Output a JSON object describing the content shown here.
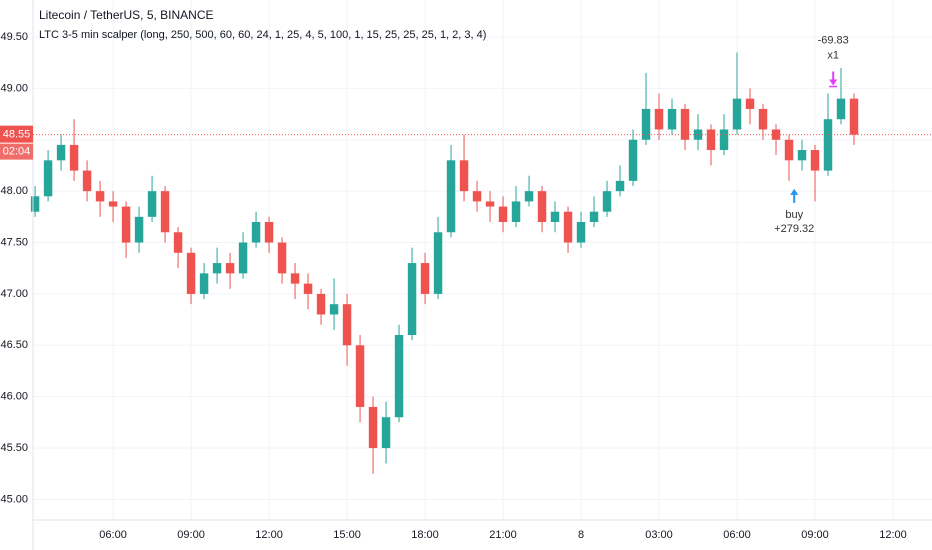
{
  "chart_data": {
    "type": "candlestick",
    "title": "Litecoin / TetherUS, 5, BINANCE",
    "subtitle": "LTC 3-5 min scalper (long, 250, 500, 60, 60, 24, 1, 25, 4, 5, 100, 1, 15, 25, 25, 25, 1, 2, 3, 4)",
    "up_color": "#26a69a",
    "down_color": "#ef5350",
    "grid": true,
    "xlim": [
      2.92,
      37.5
    ],
    "ylim": [
      44.8,
      49.86
    ],
    "yticks": [
      {
        "value": 45,
        "label": "45.00"
      },
      {
        "value": 45.5,
        "label": "45.50"
      },
      {
        "value": 46,
        "label": "46.00"
      },
      {
        "value": 46.5,
        "label": "46.50"
      },
      {
        "value": 47,
        "label": "47.00"
      },
      {
        "value": 47.5,
        "label": "47.50"
      },
      {
        "value": 48,
        "label": "48.00"
      },
      {
        "value": 48.5,
        "label": "48.50"
      },
      {
        "value": 49,
        "label": "49.00"
      },
      {
        "value": 49.5,
        "label": "49.50"
      }
    ],
    "xticks": [
      {
        "value": 6,
        "label": "06:00"
      },
      {
        "value": 9,
        "label": "09:00"
      },
      {
        "value": 12,
        "label": "12:00"
      },
      {
        "value": 15,
        "label": "15:00"
      },
      {
        "value": 18,
        "label": "18:00"
      },
      {
        "value": 21,
        "label": "21:00"
      },
      {
        "value": 24,
        "label": "8"
      },
      {
        "value": 27,
        "label": "03:00"
      },
      {
        "value": 30,
        "label": "06:00"
      },
      {
        "value": 33,
        "label": "09:00"
      },
      {
        "value": 36,
        "label": "12:00"
      }
    ],
    "x": [
      3,
      3.5,
      4,
      4.5,
      5,
      5.5,
      6,
      6.5,
      7,
      7.5,
      8,
      8.5,
      9,
      9.5,
      10,
      10.5,
      11,
      11.5,
      12,
      12.5,
      13,
      13.5,
      14,
      14.5,
      15,
      15.5,
      16,
      16.5,
      17,
      17.5,
      18,
      18.5,
      19,
      19.5,
      20,
      20.5,
      21,
      21.5,
      22,
      22.5,
      23,
      23.5,
      24,
      24.5,
      25,
      25.5,
      26,
      26.5,
      27,
      27.5,
      28,
      28.5,
      29,
      29.5,
      30,
      30.5,
      31,
      31.5,
      32,
      32.5,
      33,
      33.5,
      34,
      34.5
    ],
    "open": [
      47.8,
      47.95,
      48.3,
      48.45,
      48.2,
      48,
      47.9,
      47.85,
      47.5,
      47.75,
      48,
      47.6,
      47.4,
      47,
      47.2,
      47.3,
      47.2,
      47.5,
      47.7,
      47.5,
      47.2,
      47.1,
      47,
      46.8,
      46.9,
      46.5,
      45.9,
      45.5,
      45.8,
      46.6,
      47.3,
      47,
      47.6,
      48.3,
      48,
      47.9,
      47.85,
      47.7,
      47.9,
      48,
      47.7,
      47.8,
      47.5,
      47.7,
      47.8,
      48,
      48.1,
      48.5,
      48.8,
      48.6,
      48.8,
      48.5,
      48.6,
      48.4,
      48.6,
      48.9,
      48.8,
      48.6,
      48.5,
      48.3,
      48.4,
      48.2,
      48.7,
      48.9
    ],
    "high": [
      48.05,
      48.4,
      48.55,
      48.7,
      48.3,
      48.1,
      48,
      47.9,
      47.85,
      48.15,
      48.05,
      47.65,
      47.45,
      47.3,
      47.45,
      47.4,
      47.6,
      47.8,
      47.75,
      47.55,
      47.3,
      47.2,
      47.05,
      47.15,
      47,
      46.6,
      46,
      45.95,
      46.7,
      47.45,
      47.4,
      47.75,
      48.45,
      48.55,
      48.1,
      48,
      47.95,
      48.05,
      48.15,
      48.05,
      47.9,
      47.85,
      47.8,
      47.95,
      48.1,
      48.25,
      48.6,
      49.15,
      48.95,
      48.9,
      48.85,
      48.75,
      48.65,
      48.75,
      49.35,
      49,
      48.85,
      48.65,
      48.55,
      48.5,
      48.45,
      48.95,
      49.2,
      48.95
    ],
    "low": [
      47.75,
      47.9,
      48.2,
      48.1,
      47.9,
      47.75,
      47.7,
      47.35,
      47.4,
      47.7,
      47.5,
      47.25,
      46.9,
      46.95,
      47.1,
      47.05,
      47.15,
      47.45,
      47.4,
      47.1,
      46.95,
      46.85,
      46.7,
      46.65,
      46.3,
      45.75,
      45.25,
      45.35,
      45.75,
      46.55,
      46.9,
      46.95,
      47.55,
      47.9,
      47.8,
      47.7,
      47.6,
      47.65,
      47.85,
      47.6,
      47.6,
      47.4,
      47.45,
      47.65,
      47.75,
      47.95,
      48.05,
      48.45,
      48.5,
      48.55,
      48.4,
      48.4,
      48.25,
      48.35,
      48.55,
      48.65,
      48.5,
      48.35,
      48.1,
      48.2,
      47.9,
      48.15,
      48.65,
      48.45
    ],
    "close": [
      47.95,
      48.3,
      48.45,
      48.2,
      48,
      47.9,
      47.85,
      47.5,
      47.75,
      48,
      47.6,
      47.4,
      47,
      47.2,
      47.3,
      47.2,
      47.5,
      47.7,
      47.5,
      47.2,
      47.1,
      47,
      46.8,
      46.9,
      46.5,
      45.9,
      45.5,
      45.8,
      46.6,
      47.3,
      47,
      47.6,
      48.3,
      48,
      47.9,
      47.85,
      47.7,
      47.9,
      48,
      47.7,
      47.8,
      47.5,
      47.7,
      47.8,
      48,
      48.1,
      48.5,
      48.8,
      48.6,
      48.8,
      48.5,
      48.6,
      48.4,
      48.6,
      48.9,
      48.8,
      48.6,
      48.5,
      48.3,
      48.4,
      48.2,
      48.7,
      48.9,
      48.55
    ],
    "last_price": 48.55,
    "countdown": "02:04",
    "signals": [
      {
        "text": "buy",
        "label": "+279.32",
        "x": 32.2,
        "price": 48.1,
        "color": "#2196f3"
      },
      {
        "text": "x1",
        "label": "-69.83",
        "x": 33.7,
        "price": 48.95,
        "color": "#e040fb"
      }
    ]
  }
}
